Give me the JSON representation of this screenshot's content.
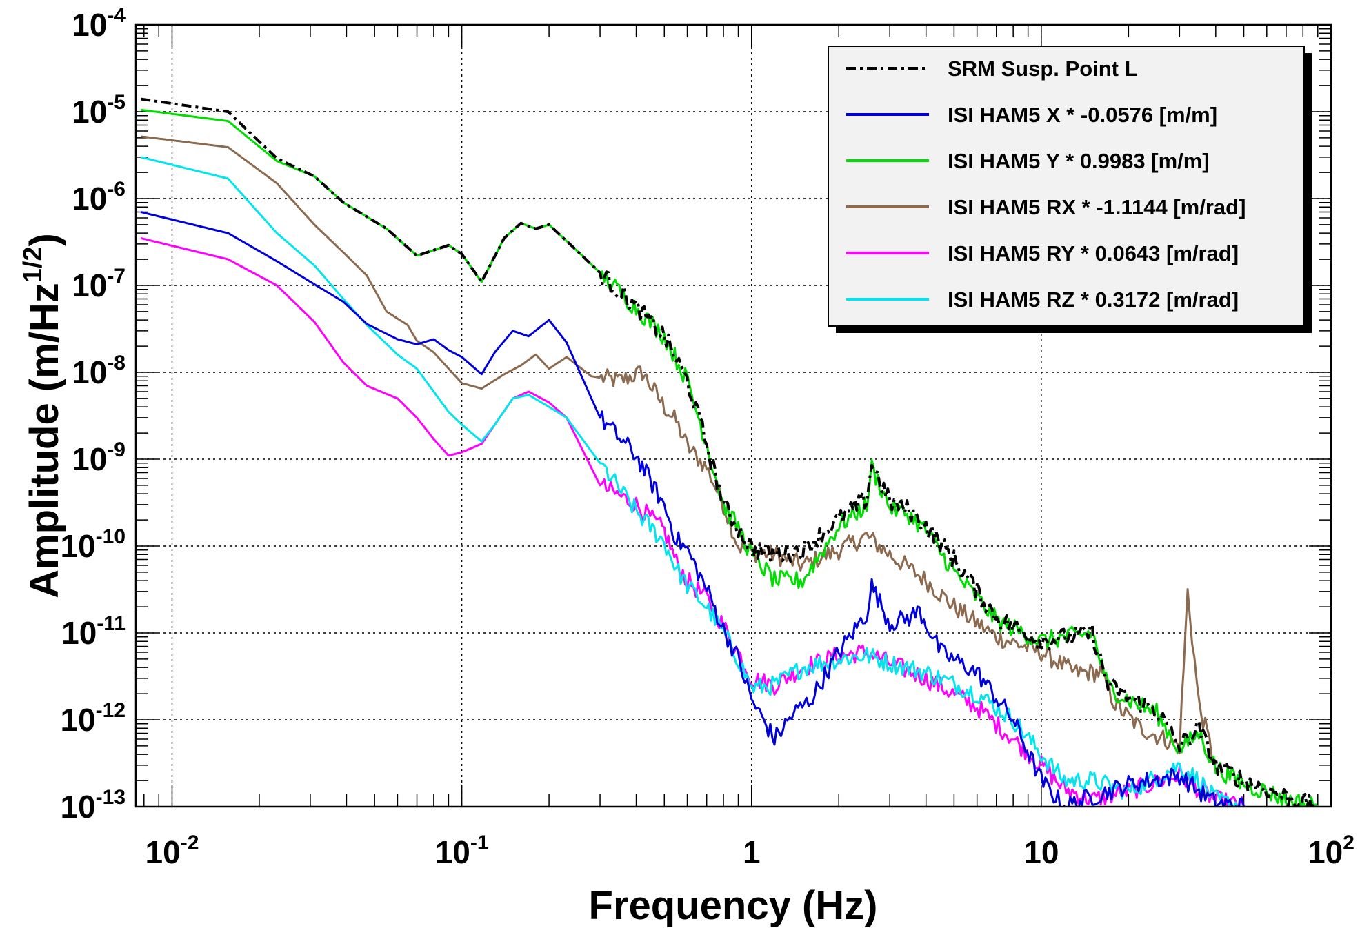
{
  "chart_data": {
    "type": "line",
    "xscale": "log",
    "yscale": "log",
    "xlim": [
      0.0075,
      100
    ],
    "ylim": [
      1e-13,
      0.0001
    ],
    "grid": true,
    "xlabel": "Frequency (Hz)",
    "ylabel": {
      "base": "Amplitude (m/Hz",
      "sup": "1/2",
      "close": ")"
    },
    "x_tick_labels": [
      {
        "value": 0.01,
        "base": "10",
        "sup": "-2"
      },
      {
        "value": 0.1,
        "base": "10",
        "sup": "-1"
      },
      {
        "value": 1,
        "base": "1",
        "sup": ""
      },
      {
        "value": 10,
        "base": "10",
        "sup": ""
      },
      {
        "value": 100,
        "base": "10",
        "sup": "2"
      }
    ],
    "y_tick_labels": [
      {
        "value": 0.0001,
        "base": "10",
        "sup": "-4"
      },
      {
        "value": 1e-05,
        "base": "10",
        "sup": "-5"
      },
      {
        "value": 1e-06,
        "base": "10",
        "sup": "-6"
      },
      {
        "value": 1e-07,
        "base": "10",
        "sup": "-7"
      },
      {
        "value": 1e-08,
        "base": "10",
        "sup": "-8"
      },
      {
        "value": 1e-09,
        "base": "10",
        "sup": "-9"
      },
      {
        "value": 1e-10,
        "base": "10",
        "sup": "-10"
      },
      {
        "value": 1e-11,
        "base": "10",
        "sup": "-11"
      },
      {
        "value": 1e-12,
        "base": "10",
        "sup": "-12"
      },
      {
        "value": 1e-13,
        "base": "10",
        "sup": "-13"
      }
    ],
    "legend_position": "top-right",
    "series": [
      {
        "name": "SRM Susp. Point L",
        "color": "#000000",
        "style": "dash-dot",
        "x": [
          0.0078,
          0.0156,
          0.023,
          0.031,
          0.039,
          0.055,
          0.07,
          0.09,
          0.1,
          0.117,
          0.14,
          0.16,
          0.18,
          0.2,
          0.25,
          0.3,
          0.4,
          0.5,
          0.6,
          0.7,
          0.8,
          0.9,
          1.0,
          1.2,
          1.5,
          2.0,
          2.5,
          2.6,
          3.0,
          3.5,
          4.0,
          5.0,
          7.0,
          10,
          15,
          17,
          20,
          25,
          30,
          35,
          40,
          50,
          60,
          70,
          80,
          90
        ],
        "y": [
          1.4e-05,
          1e-05,
          2.9e-06,
          1.8e-06,
          9e-07,
          4.5e-07,
          2.2e-07,
          2.9e-07,
          2.3e-07,
          1.1e-07,
          3.5e-07,
          5.2e-07,
          4.5e-07,
          5e-07,
          2.5e-07,
          1.4e-07,
          5.5e-08,
          2.6e-08,
          8e-09,
          1.5e-09,
          3e-10,
          1.6e-10,
          9.5e-11,
          8e-11,
          9e-11,
          2e-10,
          3.5e-10,
          9e-10,
          3.2e-10,
          2.6e-10,
          1.7e-10,
          7e-11,
          1.5e-11,
          8e-12,
          1e-11,
          2.5e-12,
          1.8e-12,
          1.3e-12,
          5e-13,
          8e-13,
          3e-13,
          2e-13,
          1.6e-13,
          1.3e-13,
          1.1e-13,
          1e-13
        ]
      },
      {
        "name": "ISI HAM5 X * -0.0576 [m/m]",
        "color": "#0000dd",
        "style": "solid",
        "x": [
          0.0078,
          0.0156,
          0.023,
          0.031,
          0.039,
          0.047,
          0.06,
          0.07,
          0.08,
          0.09,
          0.1,
          0.117,
          0.13,
          0.15,
          0.17,
          0.2,
          0.23,
          0.3,
          0.4,
          0.5,
          0.55,
          0.6,
          0.7,
          0.8,
          0.9,
          1.0,
          1.2,
          1.4,
          1.6,
          2.0,
          2.5,
          2.6,
          3.0,
          3.5,
          3.8,
          4.5,
          6.0,
          8.0,
          10,
          12,
          15,
          20,
          30,
          35,
          40,
          50
        ],
        "y": [
          7e-07,
          4e-07,
          1.9e-07,
          1.03e-07,
          6.5e-08,
          3.6e-08,
          2.4e-08,
          2.1e-08,
          2.4e-08,
          1.8e-08,
          1.5e-08,
          9.5e-09,
          1.7e-08,
          3e-08,
          2.6e-08,
          4e-08,
          2.2e-08,
          3e-09,
          1.1e-09,
          2.9e-10,
          1.2e-10,
          9e-11,
          3.2e-11,
          1.1e-11,
          5e-12,
          1.7e-12,
          6e-13,
          1.2e-12,
          1.7e-12,
          6e-12,
          1.7e-11,
          3.5e-11,
          1.3e-11,
          1.5e-11,
          1.8e-11,
          6e-12,
          3.5e-12,
          1e-12,
          2e-13,
          1e-13,
          1.3e-13,
          1.8e-13,
          2.3e-13,
          1.5e-13,
          1.1e-13,
          1e-13
        ]
      },
      {
        "name": "ISI HAM5 Y * 0.9983 [m/m]",
        "color": "#00dd00",
        "style": "solid",
        "x": [
          0.0078,
          0.0156,
          0.023,
          0.031,
          0.039,
          0.055,
          0.07,
          0.09,
          0.1,
          0.117,
          0.14,
          0.16,
          0.18,
          0.2,
          0.25,
          0.3,
          0.4,
          0.5,
          0.6,
          0.7,
          0.8,
          0.9,
          1.0,
          1.2,
          1.5,
          2.0,
          2.5,
          2.6,
          3.0,
          3.5,
          4.0,
          5.0,
          7.0,
          10,
          15,
          17,
          20,
          25,
          30,
          35,
          40,
          50,
          60,
          70,
          80,
          90
        ],
        "y": [
          1.05e-05,
          7.8e-06,
          2.7e-06,
          1.8e-06,
          9e-07,
          4.5e-07,
          2.2e-07,
          2.9e-07,
          2.3e-07,
          1.1e-07,
          3.5e-07,
          5.2e-07,
          4.5e-07,
          5e-07,
          2.5e-07,
          1.4e-07,
          5.5e-08,
          2.6e-08,
          8e-09,
          1.5e-09,
          3e-10,
          1.6e-10,
          8e-11,
          4e-11,
          4e-11,
          1.7e-10,
          3e-10,
          8e-10,
          2.8e-10,
          2.3e-10,
          1.5e-10,
          5e-11,
          1.4e-11,
          8e-12,
          1e-11,
          2.4e-12,
          1.7e-12,
          1.2e-12,
          4.5e-13,
          7e-13,
          2.8e-13,
          1.8e-13,
          1.5e-13,
          1.2e-13,
          1.1e-13,
          1e-13
        ]
      },
      {
        "name": "ISI HAM5 RX * -1.1144 [m/rad]",
        "color": "#8b6a4f",
        "style": "solid",
        "x": [
          0.0078,
          0.0156,
          0.023,
          0.031,
          0.039,
          0.047,
          0.055,
          0.065,
          0.07,
          0.08,
          0.1,
          0.117,
          0.14,
          0.16,
          0.18,
          0.2,
          0.23,
          0.28,
          0.35,
          0.42,
          0.5,
          0.55,
          0.6,
          0.7,
          0.8,
          0.9,
          1.0,
          1.2,
          1.5,
          2.0,
          2.5,
          3.0,
          4.0,
          5.0,
          7.0,
          10,
          13,
          16,
          18,
          22,
          30,
          32,
          35,
          40
        ],
        "y": [
          5.2e-06,
          3.9e-06,
          1.5e-06,
          5e-07,
          2.4e-07,
          1.3e-07,
          5e-08,
          3.5e-08,
          2.3e-08,
          1.7e-08,
          7.5e-09,
          6.5e-09,
          9.5e-09,
          1.2e-08,
          1.6e-08,
          1.1e-08,
          1.5e-08,
          9e-09,
          8e-09,
          1e-08,
          4e-09,
          2.7e-09,
          1.4e-09,
          8e-10,
          3e-10,
          1e-10,
          8.5e-11,
          8e-11,
          6e-11,
          9e-11,
          1.3e-10,
          8e-11,
          4e-11,
          2e-11,
          9e-12,
          6e-12,
          3.5e-12,
          3.5e-12,
          1.5e-12,
          8e-13,
          5e-13,
          3e-11,
          1.5e-12,
          3e-13
        ]
      },
      {
        "name": "ISI HAM5 RY * 0.0643 [m/rad]",
        "color": "#ff00ff",
        "style": "solid",
        "x": [
          0.0078,
          0.0156,
          0.023,
          0.031,
          0.039,
          0.047,
          0.06,
          0.07,
          0.08,
          0.09,
          0.1,
          0.117,
          0.13,
          0.15,
          0.17,
          0.2,
          0.23,
          0.3,
          0.4,
          0.5,
          0.55,
          0.6,
          0.7,
          0.8,
          0.9,
          1.0,
          1.2,
          1.5,
          2.0,
          2.5,
          3.0,
          4.0,
          6.0,
          8.0,
          10,
          12,
          15,
          20,
          30,
          35,
          40,
          50
        ],
        "y": [
          3.5e-07,
          2e-07,
          1e-07,
          3.8e-08,
          1.3e-08,
          7e-09,
          5e-09,
          3e-09,
          1.7e-09,
          1.1e-09,
          1.2e-09,
          1.5e-09,
          2.5e-09,
          5e-09,
          6e-09,
          4.5e-09,
          3e-09,
          5e-10,
          3e-10,
          1.5e-10,
          6.5e-11,
          4e-11,
          2.5e-11,
          1.2e-11,
          6e-12,
          3e-12,
          2.5e-12,
          4e-12,
          5.5e-12,
          6e-12,
          4.5e-12,
          3e-12,
          1.4e-12,
          6e-13,
          3e-13,
          1.6e-13,
          1.2e-13,
          1.5e-13,
          2.3e-13,
          1.6e-13,
          1.2e-13,
          1e-13
        ]
      },
      {
        "name": "ISI HAM5 RZ * 0.3172 [m/rad]",
        "color": "#00e5ee",
        "style": "solid",
        "x": [
          0.0078,
          0.0156,
          0.023,
          0.031,
          0.039,
          0.047,
          0.06,
          0.07,
          0.08,
          0.09,
          0.1,
          0.117,
          0.13,
          0.15,
          0.17,
          0.2,
          0.23,
          0.3,
          0.4,
          0.5,
          0.55,
          0.6,
          0.7,
          0.8,
          0.9,
          1.0,
          1.2,
          1.5,
          2.0,
          2.5,
          3.0,
          4.0,
          6.0,
          8.0,
          10,
          12,
          15,
          20,
          30,
          35,
          40,
          50
        ],
        "y": [
          3e-06,
          1.7e-06,
          4e-07,
          1.7e-07,
          7e-08,
          3.5e-08,
          1.6e-08,
          1.1e-08,
          6e-09,
          3.5e-09,
          2.5e-09,
          1.6e-09,
          2.5e-09,
          5e-09,
          5.5e-09,
          4e-09,
          3e-09,
          9e-10,
          2.5e-10,
          1.1e-10,
          5.5e-11,
          3.5e-11,
          2e-11,
          1e-11,
          5e-12,
          2.3e-12,
          2.5e-12,
          4e-12,
          5e-12,
          5.5e-12,
          4.5e-12,
          3.5e-12,
          2e-12,
          1e-12,
          4e-13,
          2e-13,
          2e-13,
          1.5e-13,
          3e-13,
          2e-13,
          1.2e-13,
          1e-13
        ]
      }
    ]
  }
}
